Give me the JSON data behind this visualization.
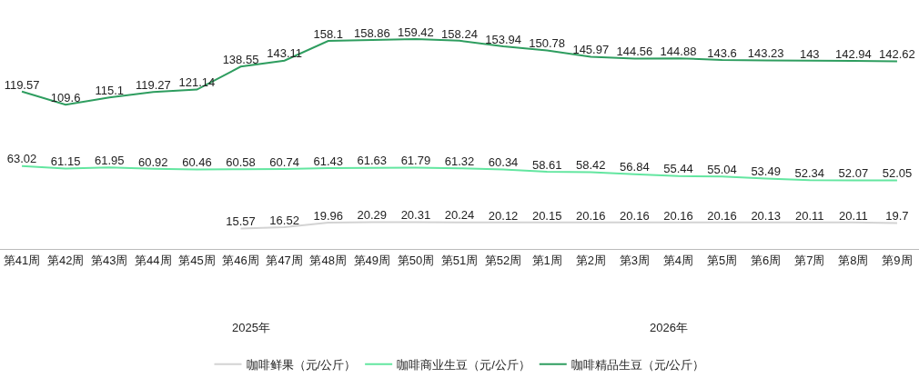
{
  "chart_data": {
    "type": "line",
    "categories": [
      "第41周",
      "第42周",
      "第43周",
      "第44周",
      "第45周",
      "第46周",
      "第47周",
      "第48周",
      "第49周",
      "第50周",
      "第51周",
      "第52周",
      "第1周",
      "第2周",
      "第3周",
      "第4周",
      "第5周",
      "第6周",
      "第7周",
      "第8周",
      "第9周"
    ],
    "series": [
      {
        "name": "咖啡鲜果（元/公斤）",
        "color": "#d3d3d3",
        "values": [
          null,
          null,
          null,
          null,
          null,
          15.57,
          16.52,
          19.96,
          20.29,
          20.31,
          20.24,
          20.12,
          20.15,
          20.16,
          20.16,
          20.16,
          20.16,
          20.13,
          20.11,
          20.11,
          19.7
        ]
      },
      {
        "name": "咖啡商业生豆（元/公斤）",
        "color": "#63e6a0",
        "values": [
          63.02,
          61.15,
          61.95,
          60.92,
          60.46,
          60.58,
          60.74,
          61.43,
          61.63,
          61.79,
          61.32,
          60.34,
          58.61,
          58.42,
          56.84,
          55.44,
          55.04,
          53.49,
          52.34,
          52.07,
          52.05
        ]
      },
      {
        "name": "咖啡精品生豆（元/公斤）",
        "color": "#2e9d5f",
        "values": [
          119.57,
          109.6,
          115.1,
          119.27,
          121.14,
          138.55,
          143.11,
          158.1,
          158.86,
          159.42,
          158.24,
          153.94,
          150.78,
          145.97,
          144.56,
          144.88,
          143.6,
          143.23,
          143,
          142.94,
          142.62
        ]
      }
    ],
    "annotations": [
      "2025年",
      "2026年"
    ],
    "data_labels": true,
    "legend": "bottom",
    "marker": "none",
    "line_style": "solid"
  }
}
